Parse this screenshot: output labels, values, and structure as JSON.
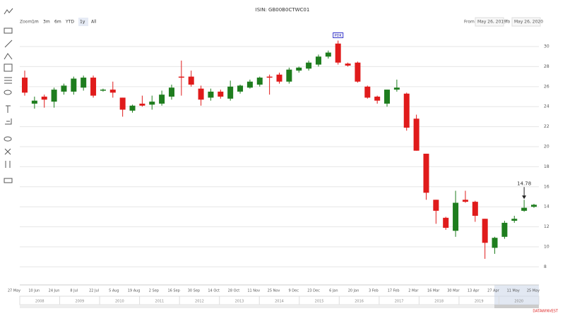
{
  "chart_data": {
    "type": "candlestick",
    "title": "ISIN: GB00B0CTWC01",
    "zoom_label": "Zoom",
    "zoom_buttons": [
      "1m",
      "3m",
      "6m",
      "YTD",
      "1y",
      "All"
    ],
    "zoom_selected": "1y",
    "from_label": "From",
    "from_date": "May 26, 2019",
    "to_label": "To",
    "to_date": "May 26, 2020",
    "x_labels": [
      "27 May",
      "10 Jun",
      "24 Jun",
      "8 Jul",
      "22 Jul",
      "5 Aug",
      "19 Aug",
      "2 Sep",
      "16 Sep",
      "30 Sep",
      "14 Oct",
      "28 Oct",
      "11 Nov",
      "25 Nov",
      "9 Dec",
      "23 Dec",
      "6 Jan",
      "20 Jan",
      "3 Feb",
      "17 Feb",
      "2 Mar",
      "16 Mar",
      "30 Mar",
      "13 Apr",
      "27 Apr",
      "11 May",
      "25 May"
    ],
    "navigator_years": [
      "2008",
      "2009",
      "2010",
      "2011",
      "2012",
      "2013",
      "2014",
      "2015",
      "2016",
      "2017",
      "2018",
      "2019",
      "2020"
    ],
    "annotations": [
      "PDK",
      "14.78"
    ],
    "credit": "DATAWINVEST",
    "up_color": "#1e7d1e",
    "down_color": "#e01b1b",
    "ylim": [
      6.9,
      31.2
    ],
    "yticks": [
      8,
      10,
      12,
      14,
      16,
      18,
      20,
      22,
      24,
      26,
      28,
      30
    ],
    "grid": true,
    "open": [
      26.9,
      24.3,
      25.0,
      24.5,
      25.5,
      25.5,
      25.9,
      26.9,
      25.6,
      25.7,
      24.9,
      23.6,
      24.3,
      24.2,
      24.3,
      25.0,
      27.0,
      27.0,
      25.8,
      24.9,
      25.5,
      24.8,
      25.5,
      25.9,
      26.2,
      27.0,
      27.2,
      26.5,
      27.6,
      27.8,
      28.2,
      29.0,
      30.3,
      28.3,
      28.4,
      26.0,
      25.0,
      24.3,
      25.7,
      25.3,
      22.8,
      19.3,
      14.7,
      12.9,
      11.6,
      14.7,
      14.5,
      12.8,
      9.9,
      11.0,
      12.6,
      13.6,
      14.0
    ],
    "high": [
      27.6,
      25.0,
      25.2,
      25.9,
      26.3,
      27.0,
      27.1,
      27.1,
      25.8,
      26.5,
      24.9,
      24.2,
      25.1,
      25.1,
      25.6,
      26.2,
      28.6,
      27.6,
      26.1,
      25.8,
      25.7,
      26.6,
      26.2,
      26.7,
      27.0,
      27.2,
      27.4,
      27.9,
      28.0,
      28.6,
      29.2,
      29.6,
      30.6,
      28.4,
      28.5,
      26.1,
      25.1,
      25.7,
      26.7,
      25.4,
      23.2,
      19.3,
      14.7,
      13.0,
      15.6,
      15.6,
      14.6,
      12.8,
      11.0,
      12.6,
      13.1,
      14.7,
      14.3
    ],
    "low": [
      25.1,
      23.8,
      23.9,
      23.9,
      25.2,
      25.2,
      25.6,
      24.9,
      25.5,
      24.9,
      23.0,
      23.4,
      24.0,
      23.7,
      24.1,
      24.7,
      25.1,
      26.0,
      24.1,
      24.6,
      24.8,
      24.6,
      25.3,
      25.8,
      26.0,
      25.2,
      26.3,
      26.3,
      27.4,
      27.6,
      28.0,
      28.8,
      28.2,
      28.0,
      26.4,
      24.8,
      24.3,
      24.0,
      25.5,
      21.6,
      19.6,
      14.7,
      12.3,
      11.7,
      11.0,
      14.4,
      12.5,
      8.8,
      9.3,
      10.8,
      12.4,
      13.5,
      13.9
    ],
    "close": [
      25.4,
      24.6,
      24.7,
      25.7,
      26.1,
      26.8,
      26.9,
      25.1,
      25.7,
      25.4,
      23.7,
      24.1,
      24.1,
      24.5,
      25.2,
      25.9,
      26.9,
      26.2,
      24.7,
      25.5,
      25.0,
      26.0,
      26.1,
      26.5,
      26.9,
      26.9,
      26.5,
      27.7,
      27.9,
      28.4,
      29.0,
      29.4,
      28.4,
      28.1,
      26.5,
      24.9,
      24.6,
      25.7,
      25.9,
      21.9,
      19.6,
      15.4,
      13.6,
      11.9,
      14.4,
      14.5,
      13.1,
      10.4,
      10.9,
      12.4,
      12.8,
      13.9,
      14.2
    ]
  }
}
